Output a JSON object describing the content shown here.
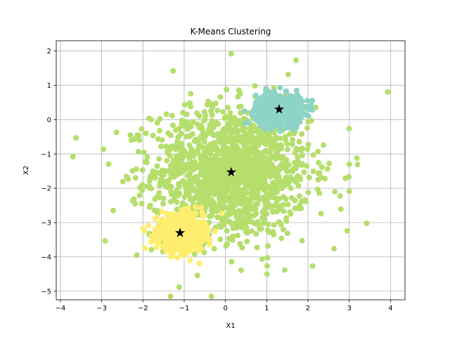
{
  "chart_data": {
    "type": "scatter",
    "title": "K-Means Clustering",
    "xlabel": "X1",
    "ylabel": "X2",
    "xlim": [
      -4.1,
      4.35
    ],
    "ylim": [
      -5.25,
      2.3
    ],
    "xticks": [
      -4,
      -3,
      -2,
      -1,
      0,
      1,
      2,
      3,
      4
    ],
    "yticks": [
      -5,
      -4,
      -3,
      -2,
      -1,
      0,
      1,
      2
    ],
    "grid": true,
    "legend": "none",
    "clusters": [
      {
        "color": "#b5de6c",
        "centroid": [
          0.14,
          -1.53
        ],
        "spread": [
          0.95,
          0.95
        ],
        "count": 1500,
        "sample_points": [
          [
            3.93,
            0.81
          ],
          [
            -3.62,
            -0.53
          ],
          [
            0.14,
            1.92
          ],
          [
            -1.12,
            -4.88
          ],
          [
            3.42,
            -3.02
          ],
          [
            -2.72,
            -2.65
          ],
          [
            2.63,
            -3.76
          ],
          [
            -2.15,
            -3.95
          ],
          [
            1.52,
            1.32
          ],
          [
            -1.27,
            1.42
          ],
          [
            3.0,
            -1.3
          ],
          [
            2.95,
            -3.24
          ],
          [
            -2.96,
            -0.86
          ],
          [
            -2.64,
            -0.37
          ],
          [
            3.2,
            -1.31
          ],
          [
            0.38,
            -4.39
          ],
          [
            1.01,
            -4.5
          ],
          [
            -0.68,
            -4.54
          ],
          [
            2.65,
            -2.1
          ],
          [
            3.0,
            -2.09
          ]
        ]
      },
      {
        "color": "#8dd3c7",
        "centroid": [
          1.3,
          0.3
        ],
        "spread": [
          0.28,
          0.22
        ],
        "count": 700,
        "sample_points": []
      },
      {
        "color": "#ffed6f",
        "centroid": [
          -1.1,
          -3.3
        ],
        "spread": [
          0.28,
          0.26
        ],
        "count": 700,
        "sample_points": []
      }
    ],
    "centroids": [
      {
        "x": 0.14,
        "y": -1.53
      },
      {
        "x": 1.3,
        "y": 0.3
      },
      {
        "x": -1.1,
        "y": -3.3
      }
    ],
    "centroid_color": "#000000",
    "centroid_marker": "star"
  }
}
